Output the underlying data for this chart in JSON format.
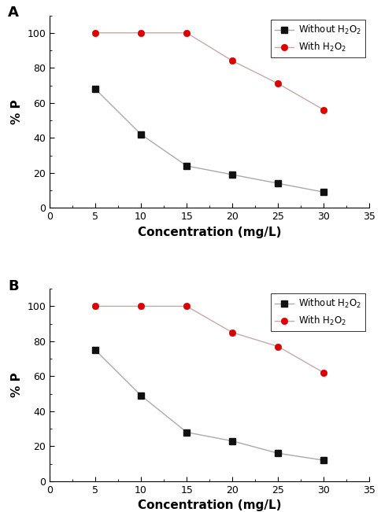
{
  "x": [
    5,
    10,
    15,
    20,
    25,
    30
  ],
  "panel_A": {
    "without_h2o2": [
      68,
      42,
      24,
      19,
      14,
      9
    ],
    "with_h2o2": [
      100,
      100,
      100,
      84,
      71,
      56
    ]
  },
  "panel_B": {
    "without_h2o2": [
      75,
      49,
      28,
      23,
      16,
      12
    ],
    "with_h2o2": [
      100,
      100,
      100,
      85,
      77,
      62
    ]
  },
  "line_color_without": "#aaaaaa",
  "line_color_with": "#c8a8a8",
  "marker_color_without": "#111111",
  "marker_color_with": "#dd0000",
  "marker_style_without": "s",
  "marker_style_with": "o",
  "marker_size": 6,
  "line_width": 1.0,
  "xlabel": "Concentration (mg/L)",
  "ylabel": "% P",
  "xlim": [
    0,
    35
  ],
  "ylim": [
    0,
    110
  ],
  "xticks": [
    0,
    5,
    10,
    15,
    20,
    25,
    30,
    35
  ],
  "yticks": [
    0,
    20,
    40,
    60,
    80,
    100
  ],
  "label_without": "Without H$_2$O$_2$",
  "label_with": "With H$_2$O$_2$",
  "panel_A_label": "A",
  "panel_B_label": "B",
  "legend_fontsize": 8.5,
  "axis_label_fontsize": 11,
  "tick_fontsize": 9,
  "panel_label_fontsize": 13,
  "background_color": "#ffffff"
}
